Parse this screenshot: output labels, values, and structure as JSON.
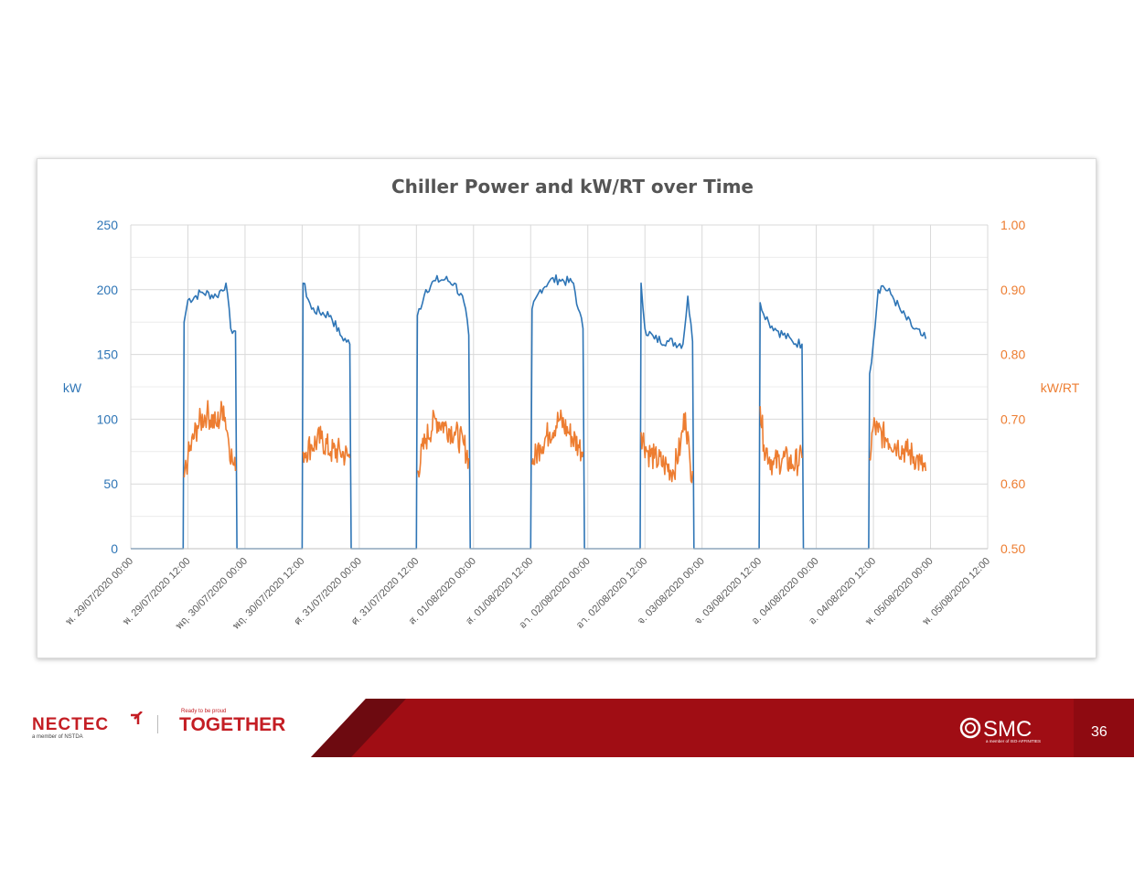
{
  "colors": {
    "kw_series": "#2e75b6",
    "kwrt_series": "#ed7d31",
    "footer_red": "#a00d14",
    "footer_dark": "#6d0a10"
  },
  "footer": {
    "nectec_brand": "NECTEC",
    "nectec_sub": "a member of NSTDA",
    "together_tag": "Ready to be proud",
    "together_brand": "TOGETHER",
    "smc_brand": "SMC",
    "smc_sub": "a member of ISO-AFFINITIES",
    "page_number": "36"
  },
  "chart_data": {
    "type": "line",
    "title": "Chiller Power and kW/RT over Time",
    "ylabel_left": "kW",
    "ylabel_right": "kW/RT",
    "ylim_left": [
      0,
      250
    ],
    "ylim_right": [
      0.5,
      1.0
    ],
    "yticks_left": [
      "0",
      "50",
      "100",
      "150",
      "200",
      "250"
    ],
    "yticks_right": [
      "0.50",
      "0.60",
      "0.70",
      "0.80",
      "0.90",
      "1.00"
    ],
    "x_tick_labels": [
      "พ. 29/07/2020 00:00",
      "พ. 29/07/2020 12:00",
      "พฤ. 30/07/2020 00:00",
      "พฤ. 30/07/2020 12:00",
      "ศ. 31/07/2020 00:00",
      "ศ. 31/07/2020 12:00",
      "ส. 01/08/2020 00:00",
      "ส. 01/08/2020 12:00",
      "อา. 02/08/2020 00:00",
      "อา. 02/08/2020 12:00",
      "จ. 03/08/2020 00:00",
      "จ. 03/08/2020 12:00",
      "อ. 04/08/2020 00:00",
      "อ. 04/08/2020 12:00",
      "พ. 05/08/2020 00:00",
      "พ. 05/08/2020 12:00"
    ],
    "x_unit": "hours since 29/07/2020 00:00",
    "grid": true,
    "series": [
      {
        "name": "kW",
        "axis": "left",
        "points": [
          [
            0,
            0
          ],
          [
            11,
            0
          ],
          [
            11.2,
            175
          ],
          [
            12,
            192
          ],
          [
            15,
            198
          ],
          [
            18,
            195
          ],
          [
            20,
            205
          ],
          [
            21,
            170
          ],
          [
            22,
            168
          ],
          [
            22.3,
            0
          ],
          [
            36,
            0
          ],
          [
            36.2,
            205
          ],
          [
            38,
            185
          ],
          [
            42,
            180
          ],
          [
            44,
            165
          ],
          [
            46,
            158
          ],
          [
            46.3,
            0
          ],
          [
            60,
            0
          ],
          [
            60.2,
            180
          ],
          [
            62,
            200
          ],
          [
            64,
            207
          ],
          [
            66,
            208
          ],
          [
            68,
            205
          ],
          [
            70,
            190
          ],
          [
            71,
            165
          ],
          [
            71.3,
            0
          ],
          [
            84,
            0
          ],
          [
            84.3,
            185
          ],
          [
            86,
            200
          ],
          [
            88,
            207
          ],
          [
            90,
            208
          ],
          [
            93,
            205
          ],
          [
            94,
            185
          ],
          [
            95,
            170
          ],
          [
            95.3,
            0
          ],
          [
            107,
            0
          ],
          [
            107.2,
            205
          ],
          [
            108,
            170
          ],
          [
            110,
            162
          ],
          [
            113,
            160
          ],
          [
            116,
            158
          ],
          [
            117,
            195
          ],
          [
            118,
            160
          ],
          [
            118.3,
            0
          ],
          [
            132,
            0
          ],
          [
            132.2,
            190
          ],
          [
            134,
            175
          ],
          [
            136,
            168
          ],
          [
            139,
            160
          ],
          [
            141,
            158
          ],
          [
            141.3,
            0
          ],
          [
            155,
            0
          ],
          [
            155.2,
            135
          ],
          [
            156,
            160
          ],
          [
            157,
            200
          ],
          [
            158,
            203
          ],
          [
            160,
            195
          ],
          [
            162,
            182
          ],
          [
            164,
            172
          ],
          [
            166,
            165
          ],
          [
            167,
            162
          ]
        ]
      },
      {
        "name": "kW/RT",
        "axis": "right",
        "points": [
          [
            11.2,
            0.61
          ],
          [
            12,
            0.64
          ],
          [
            14,
            0.69
          ],
          [
            16,
            0.71
          ],
          [
            18,
            0.69
          ],
          [
            19.5,
            0.72
          ],
          [
            20.5,
            0.67
          ],
          [
            21.5,
            0.63
          ],
          [
            22,
            0.62
          ],
          [
            36.2,
            0.65
          ],
          [
            38,
            0.66
          ],
          [
            40,
            0.67
          ],
          [
            42,
            0.65
          ],
          [
            44,
            0.65
          ],
          [
            46,
            0.64
          ],
          [
            60.2,
            0.62
          ],
          [
            62,
            0.67
          ],
          [
            64,
            0.7
          ],
          [
            66,
            0.69
          ],
          [
            68,
            0.68
          ],
          [
            70,
            0.66
          ],
          [
            71,
            0.64
          ],
          [
            84.3,
            0.63
          ],
          [
            86,
            0.66
          ],
          [
            88,
            0.68
          ],
          [
            90,
            0.7
          ],
          [
            92,
            0.68
          ],
          [
            94,
            0.66
          ],
          [
            95,
            0.65
          ],
          [
            107.2,
            0.68
          ],
          [
            108.5,
            0.65
          ],
          [
            110,
            0.64
          ],
          [
            112,
            0.63
          ],
          [
            114,
            0.62
          ],
          [
            115.5,
            0.66
          ],
          [
            116.5,
            0.71
          ],
          [
            117.5,
            0.63
          ],
          [
            118,
            0.62
          ],
          [
            132.2,
            0.72
          ],
          [
            133,
            0.66
          ],
          [
            135,
            0.63
          ],
          [
            137,
            0.64
          ],
          [
            139,
            0.63
          ],
          [
            141,
            0.64
          ],
          [
            155.2,
            0.64
          ],
          [
            156,
            0.69
          ],
          [
            157,
            0.68
          ],
          [
            159,
            0.67
          ],
          [
            161,
            0.66
          ],
          [
            163,
            0.65
          ],
          [
            165,
            0.64
          ],
          [
            166,
            0.63
          ],
          [
            167,
            0.62
          ]
        ]
      }
    ]
  }
}
